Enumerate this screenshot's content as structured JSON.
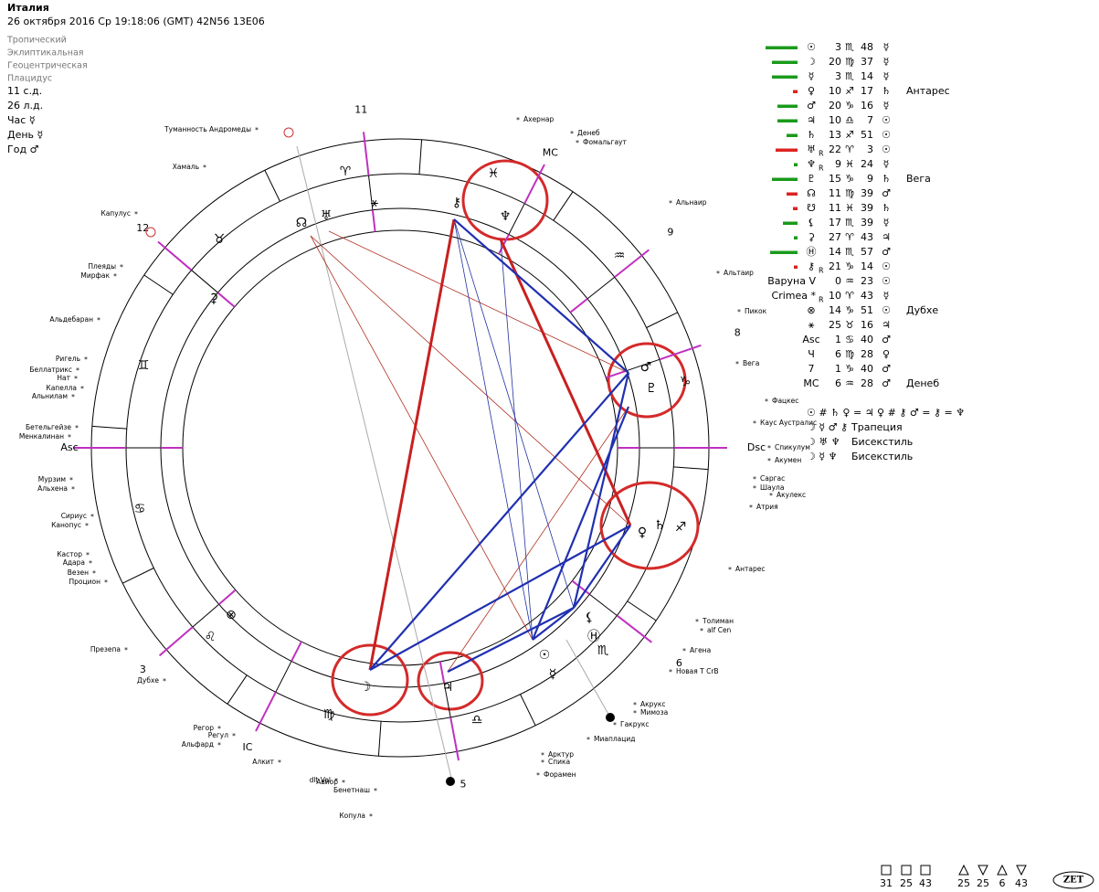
{
  "header": {
    "title": "Италия",
    "subtitle": "26 октября 2016  Ср  19:18:06 (GMT) 42N56  13E06"
  },
  "settings": [
    "Тропический",
    "Эклиптикальная",
    "Геоцентрическая",
    "Плацидус"
  ],
  "info": [
    "11 с.д.",
    "26 л.д.",
    "Час ☿",
    "День ☿",
    "Год ♂"
  ],
  "table": {
    "rows": [
      {
        "planet": "☉",
        "deg": 3,
        "sign": "♏",
        "min": 48,
        "ruler": "☿"
      },
      {
        "planet": "☽",
        "deg": 20,
        "sign": "♍",
        "min": 37,
        "ruler": "☿"
      },
      {
        "planet": "☿",
        "deg": 3,
        "sign": "♏",
        "min": 14,
        "ruler": "☿"
      },
      {
        "planet": "♀",
        "deg": 10,
        "sign": "♐",
        "min": 17,
        "ruler": "♄",
        "star": "Антарес"
      },
      {
        "planet": "♂",
        "deg": 20,
        "sign": "♑",
        "min": 16,
        "ruler": "☿"
      },
      {
        "planet": "♃",
        "deg": 10,
        "sign": "♎",
        "min": 7,
        "ruler": "☉"
      },
      {
        "planet": "♄",
        "deg": 13,
        "sign": "♐",
        "min": 51,
        "ruler": "☉"
      },
      {
        "planet": "♅",
        "retro": "R",
        "deg": 22,
        "sign": "♈",
        "min": 3,
        "ruler": "☉"
      },
      {
        "planet": "♆",
        "retro": "R",
        "deg": 9,
        "sign": "♓",
        "min": 24,
        "ruler": "☿"
      },
      {
        "planet": "♇",
        "deg": 15,
        "sign": "♑",
        "min": 9,
        "ruler": "♄",
        "star": "Вега"
      },
      {
        "planet": "☊",
        "deg": 11,
        "sign": "♍",
        "min": 39,
        "ruler": "♂"
      },
      {
        "planet": "☋",
        "deg": 11,
        "sign": "♓",
        "min": 39,
        "ruler": "♄"
      },
      {
        "planet": "⚸",
        "deg": 17,
        "sign": "♏",
        "min": 39,
        "ruler": "☿"
      },
      {
        "planet": "⚳",
        "deg": 27,
        "sign": "♈",
        "min": 43,
        "ruler": "♃"
      },
      {
        "planet": "Ⓗ",
        "deg": 14,
        "sign": "♏",
        "min": 57,
        "ruler": "♂"
      },
      {
        "planet": "⚷",
        "retro": "R",
        "deg": 21,
        "sign": "♑",
        "min": 14,
        "ruler": "☉"
      },
      {
        "planet": "Варуна V",
        "deg": 0,
        "sign": "♒",
        "min": 23,
        "ruler": "☉"
      },
      {
        "planet": "Crimea *",
        "retro": "R",
        "deg": 10,
        "sign": "♈",
        "min": 43,
        "ruler": "☿"
      },
      {
        "planet": "⊗",
        "deg": 14,
        "sign": "♑",
        "min": 51,
        "ruler": "☉",
        "star": "Дубхе"
      },
      {
        "planet": "⚹",
        "deg": 25,
        "sign": "♉",
        "min": 16,
        "ruler": "♃"
      },
      {
        "planet": "Asc",
        "deg": 1,
        "sign": "♋",
        "min": 40,
        "ruler": "♂"
      },
      {
        "planet": "Ч",
        "deg": 6,
        "sign": "♍",
        "min": 28,
        "ruler": "♀"
      },
      {
        "planet": "7",
        "deg": 1,
        "sign": "♑",
        "min": 40,
        "ruler": "♂"
      },
      {
        "planet": "MC",
        "deg": 6,
        "sign": "♒",
        "min": 28,
        "ruler": "♂",
        "star": "Денеб"
      }
    ]
  },
  "aspects": [
    {
      "glyphs": "☉ # ♄  ♀ = ♃  ♀ # ⚷  ♂ = ⚷  = ♆"
    },
    {
      "glyphs": "☽ ☿ ♂ ⚷",
      "name": "Трапеция"
    },
    {
      "glyphs": "☽ ♅ ♆",
      "name": "Бисекстиль"
    },
    {
      "glyphs": "☽ ☿ ♆",
      "name": "Бисекстиль"
    }
  ],
  "wheel": {
    "houses": [
      "11",
      "9",
      "8",
      "6",
      "5",
      "3",
      "12",
      "Asc",
      "Dsc",
      "MC",
      "IC"
    ],
    "signs": [
      "♈",
      "♉",
      "♊",
      "♋",
      "♌",
      "♍",
      "♎",
      "♏",
      "♐",
      "♑",
      "♒",
      "♓"
    ],
    "glyphs": [
      "♅",
      "☊",
      "⚹",
      "⚷",
      "♆",
      "♂",
      "♇",
      "♄",
      "♀",
      "⚸",
      "Ⓗ",
      "☉",
      "☿",
      "☽",
      "♃",
      "⚳",
      "⊗"
    ],
    "stars": [
      "Туманность Андромеды",
      "Ахернар",
      "Денеб",
      "Фомальгаут",
      "Хамаль",
      "Альнаир",
      "Капулус",
      "Альтаир",
      "Плеяды",
      "Мирфак",
      "Пикок",
      "Альдебаран",
      "Вега",
      "Ригель",
      "Беллатрикс",
      "Нат",
      "Капелла",
      "Альнилам",
      "Фацкес",
      "Бетельгейзе",
      "Менкалинан",
      "Каус Аустралис",
      "Спикулум",
      "Акумен",
      "Мурзим",
      "Альхена",
      "Саргас",
      "Шаула",
      "Акулекс",
      "Сириус",
      "Канопус",
      "Атрия",
      "Кастор",
      "Адара",
      "Везен",
      "Процион",
      "Антарес",
      "Толиман",
      "alf Cen",
      "Презепа",
      "Агена",
      "Новая Т CrB",
      "Дубхе",
      "Акрукс",
      "Мимоза",
      "Гакрукс",
      "Регор",
      "Регул",
      "Миаплацид",
      "Альфард",
      "Арктур",
      "Спика",
      "Алкит",
      "Форамен",
      "dlt Vel",
      "Авиор",
      "Бенетнаш",
      "Копула"
    ]
  },
  "footer": {
    "counts": [
      31,
      25,
      43,
      25,
      25,
      6,
      43
    ],
    "logo": "ZET"
  }
}
